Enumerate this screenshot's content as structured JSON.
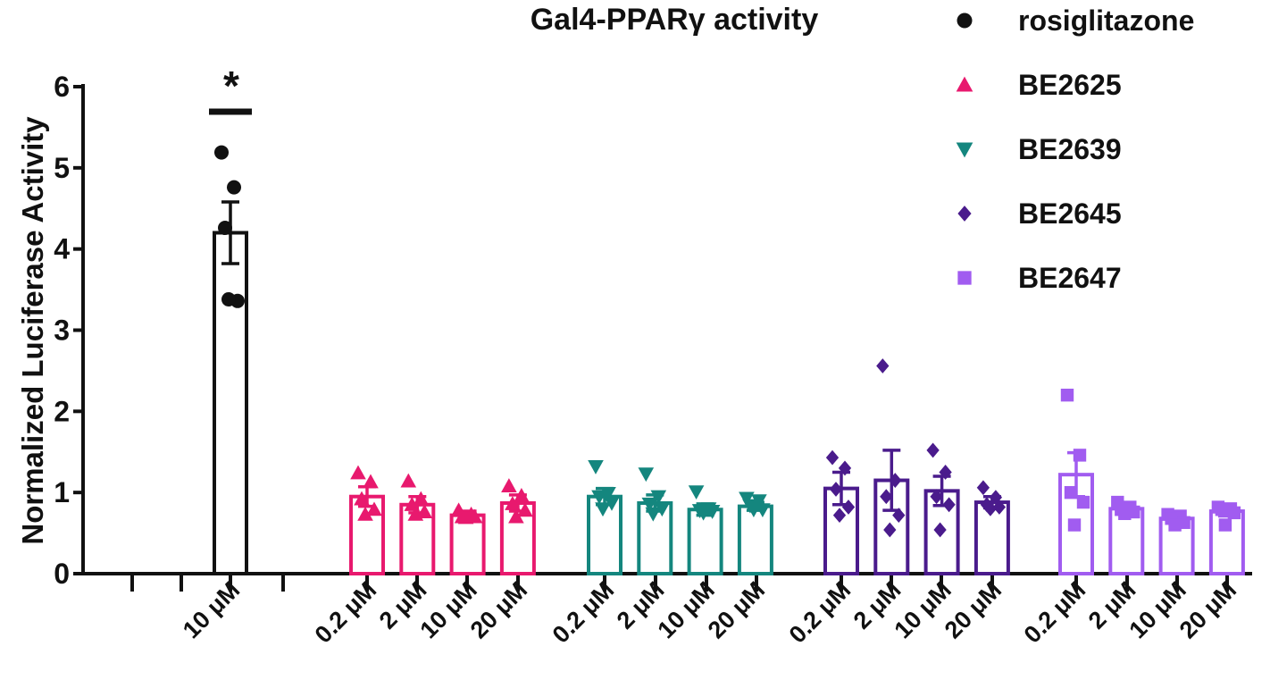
{
  "chart_data": {
    "type": "bar",
    "title": "Gal4-PPARγ activity",
    "ylabel": "Normalized Luciferase Activity",
    "xlabel": "",
    "ylim": [
      0,
      6
    ],
    "yticks": [
      "0",
      "1",
      "2",
      "3",
      "4",
      "5",
      "6"
    ],
    "grid": false,
    "legend_position": "top-right",
    "significance": [
      {
        "group": 0,
        "label": "*"
      }
    ],
    "groups": [
      {
        "name": "rosiglitazone",
        "color": "#111111",
        "marker": "circle",
        "bars": [
          {
            "label": "10 μM",
            "mean": 4.2,
            "sem": 0.38,
            "points": [
              5.19,
              4.76,
              4.26,
              3.36,
              3.38
            ]
          }
        ]
      },
      {
        "name": "BE2625",
        "color": "#e8196e",
        "marker": "triangle-up",
        "bars": [
          {
            "label": "0.2 μM",
            "mean": 0.95,
            "sem": 0.12,
            "points": [
              1.24,
              1.13,
              0.92,
              0.79,
              0.73
            ]
          },
          {
            "label": "2 μM",
            "mean": 0.85,
            "sem": 0.1,
            "points": [
              1.14,
              0.92,
              0.85,
              0.76,
              0.73
            ]
          },
          {
            "label": "10 μM",
            "mean": 0.72,
            "sem": 0.05,
            "points": [
              0.78,
              0.73,
              0.7,
              0.7,
              0.69
            ]
          },
          {
            "label": "20 μM",
            "mean": 0.87,
            "sem": 0.1,
            "points": [
              1.08,
              0.96,
              0.86,
              0.78,
              0.7
            ]
          }
        ]
      },
      {
        "name": "BE2639",
        "color": "#14867e",
        "marker": "triangle-down",
        "bars": [
          {
            "label": "0.2 μM",
            "mean": 0.95,
            "sem": 0.1,
            "points": [
              1.32,
              0.99,
              0.95,
              0.87,
              0.8
            ]
          },
          {
            "label": "2 μM",
            "mean": 0.87,
            "sem": 0.1,
            "points": [
              1.23,
              0.95,
              0.86,
              0.8,
              0.74
            ]
          },
          {
            "label": "10 μM",
            "mean": 0.79,
            "sem": 0.07,
            "points": [
              1.01,
              0.8,
              0.78,
              0.77,
              0.75
            ]
          },
          {
            "label": "20 μM",
            "mean": 0.83,
            "sem": 0.05,
            "points": [
              0.93,
              0.9,
              0.84,
              0.79,
              0.79
            ]
          }
        ]
      },
      {
        "name": "BE2645",
        "color": "#4a1b8c",
        "marker": "diamond",
        "bars": [
          {
            "label": "0.2 μM",
            "mean": 1.05,
            "sem": 0.2,
            "points": [
              1.43,
              1.3,
              1.04,
              0.82,
              0.72
            ]
          },
          {
            "label": "2 μM",
            "mean": 1.15,
            "sem": 0.37,
            "points": [
              2.56,
              1.15,
              0.95,
              0.72,
              0.54
            ]
          },
          {
            "label": "10 μM",
            "mean": 1.02,
            "sem": 0.18,
            "points": [
              1.52,
              1.25,
              0.95,
              0.85,
              0.54
            ]
          },
          {
            "label": "20 μM",
            "mean": 0.88,
            "sem": 0.07,
            "points": [
              1.06,
              0.94,
              0.85,
              0.82,
              0.8
            ]
          }
        ]
      },
      {
        "name": "BE2647",
        "color": "#a15cf0",
        "marker": "square",
        "bars": [
          {
            "label": "0.2 μM",
            "mean": 1.22,
            "sem": 0.27,
            "points": [
              2.2,
              1.46,
              1.0,
              0.88,
              0.6
            ]
          },
          {
            "label": "2 μM",
            "mean": 0.8,
            "sem": 0.07,
            "points": [
              0.88,
              0.82,
              0.79,
              0.76,
              0.74
            ]
          },
          {
            "label": "10 μM",
            "mean": 0.68,
            "sem": 0.04,
            "points": [
              0.73,
              0.71,
              0.68,
              0.63,
              0.6
            ]
          },
          {
            "label": "20 μM",
            "mean": 0.77,
            "sem": 0.06,
            "points": [
              0.82,
              0.8,
              0.79,
              0.75,
              0.6
            ]
          }
        ]
      }
    ]
  }
}
